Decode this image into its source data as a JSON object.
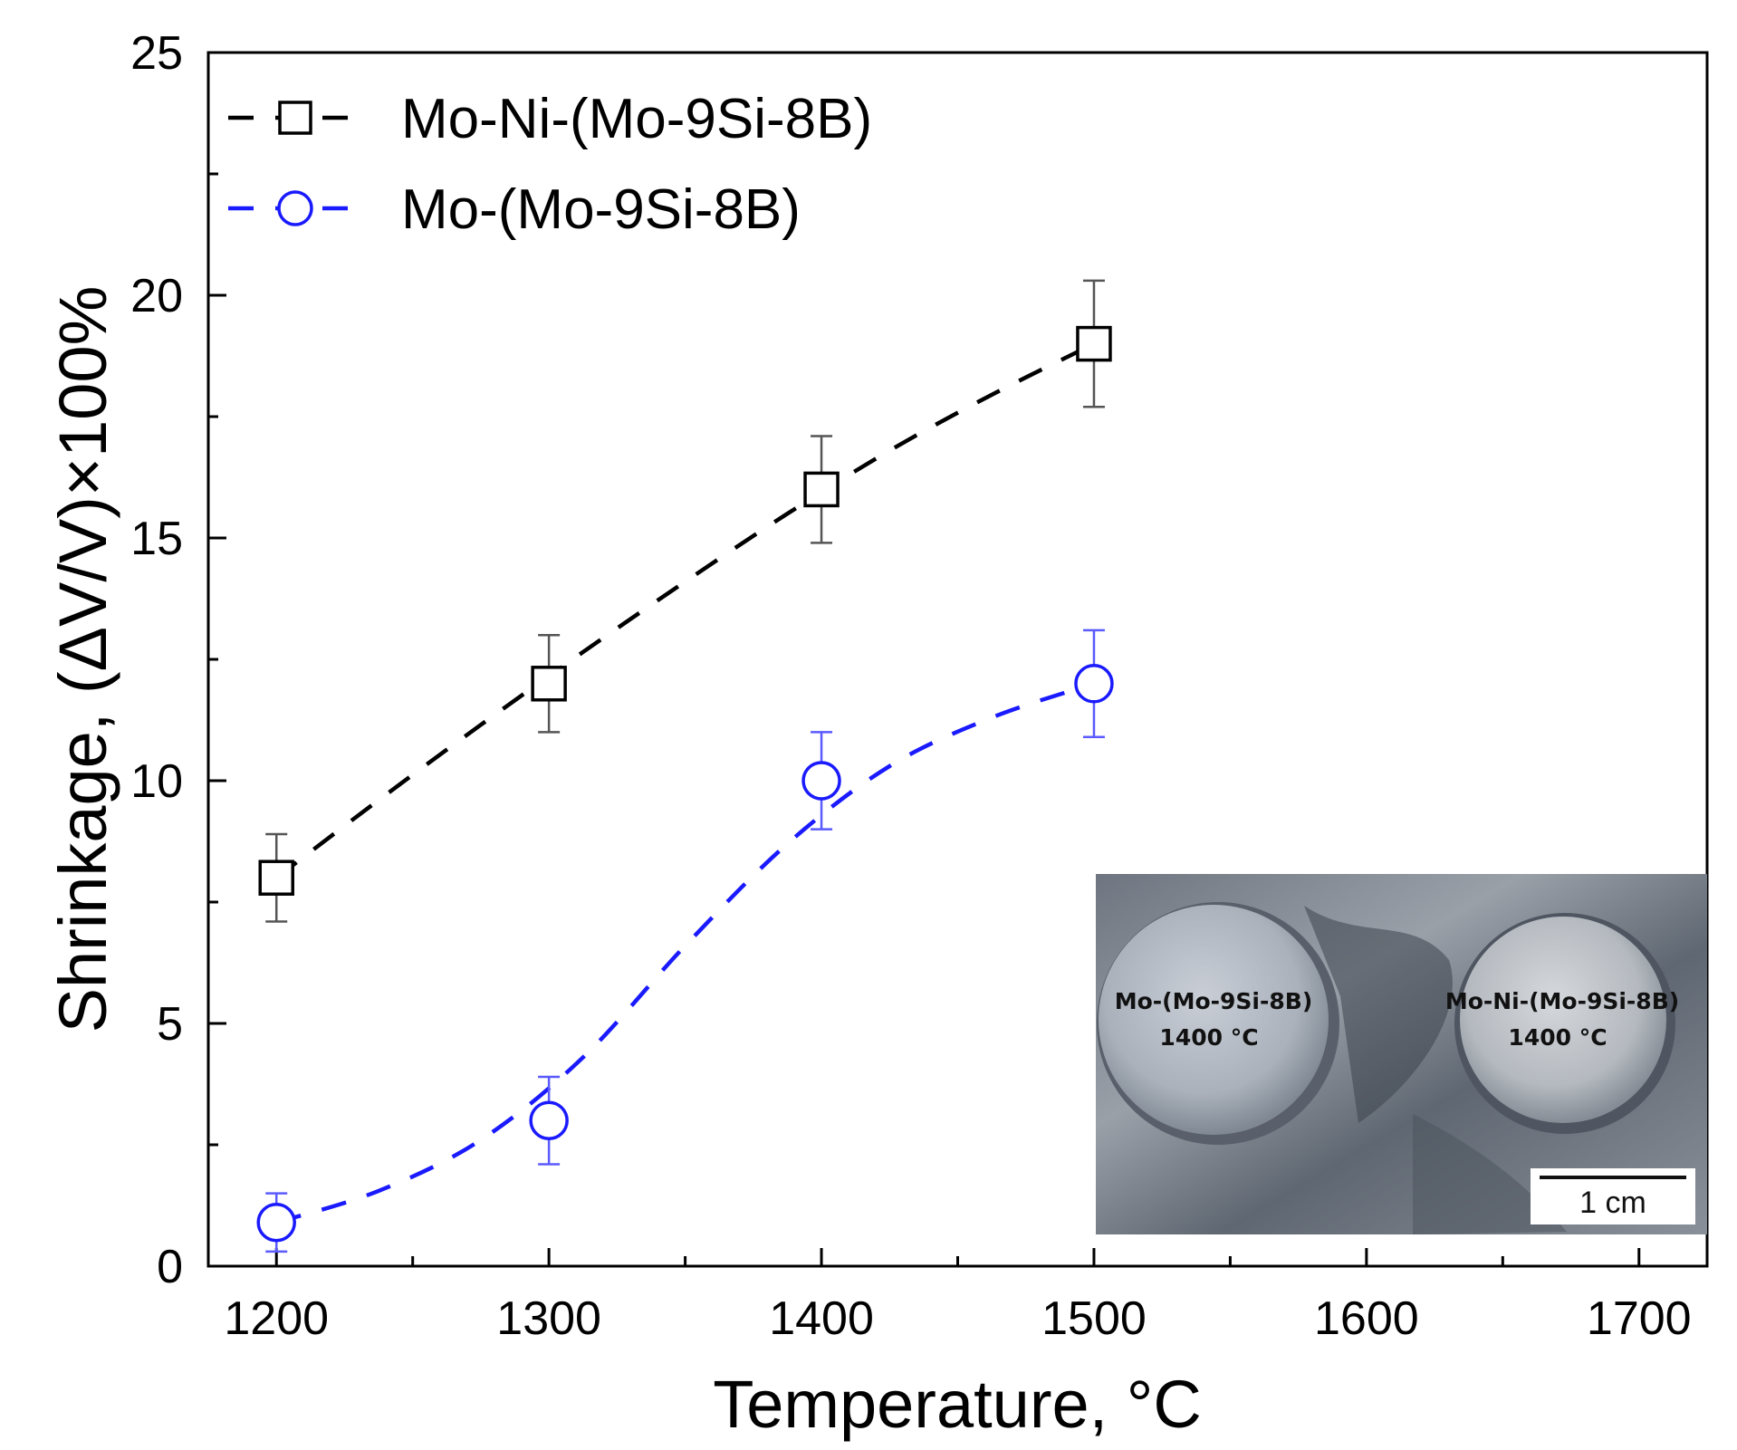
{
  "chart_data": {
    "type": "line",
    "xlabel": "Temperature, °C",
    "ylabel": "Shrinkage, (ΔV/V)×100%",
    "xlim": [
      1175,
      1725
    ],
    "ylim": [
      0,
      25
    ],
    "x_ticks": [
      1200,
      1250,
      1300,
      1350,
      1400,
      1450,
      1500,
      1550,
      1600,
      1650,
      1700
    ],
    "y_ticks": [
      0,
      5,
      10,
      15,
      20,
      25
    ],
    "grid": false,
    "legend_position": "top-left",
    "series": [
      {
        "name": "Mo-Ni-(Mo-9Si-8B)",
        "color": "#000000",
        "marker": "open-square",
        "line_style": "dashed",
        "x": [
          1200,
          1300,
          1400,
          1500
        ],
        "y": [
          8.0,
          12.0,
          16.0,
          19.0
        ],
        "error": [
          0.9,
          1.0,
          1.1,
          1.3
        ],
        "fit_x": [
          1200,
          1237.5,
          1275,
          1312.5,
          1350,
          1387.5,
          1425,
          1462.5,
          1500
        ],
        "fit_y": [
          8.0,
          9.6,
          11.15,
          12.65,
          14.1,
          15.5,
          16.8,
          17.95,
          19.0
        ]
      },
      {
        "name": "Mo-(Mo-9Si-8B)",
        "color": "#1a1aff",
        "marker": "open-circle",
        "line_style": "dashed",
        "x": [
          1200,
          1300,
          1400,
          1500
        ],
        "y": [
          0.9,
          3.0,
          10.0,
          12.0
        ],
        "error": [
          0.6,
          0.9,
          1.0,
          1.1
        ],
        "fit_x": [
          1200,
          1237.5,
          1275,
          1312.5,
          1350,
          1387.5,
          1425,
          1462.5,
          1500
        ],
        "fit_y": [
          0.9,
          1.55,
          2.6,
          4.3,
          6.6,
          8.7,
          10.3,
          11.3,
          12.0
        ]
      }
    ],
    "inset": {
      "labels": [
        {
          "line1": "Mo-(Mo-9Si-8B)",
          "line2": "1400 °C"
        },
        {
          "line1": "Mo-Ni-(Mo-9Si-8B)",
          "line2": "1400 °C"
        }
      ],
      "scale_bar": "1 cm"
    }
  }
}
